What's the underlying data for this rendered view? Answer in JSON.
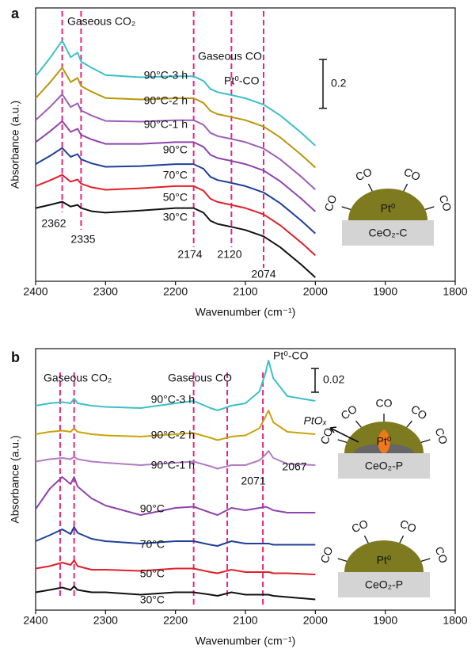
{
  "chart_data": [
    {
      "type": "line",
      "panel_label": "a",
      "xlabel": "Wavenumber (cm⁻¹)",
      "ylabel": "Absorbance (a.u.)",
      "xlim": [
        2400,
        1800
      ],
      "xticks": [
        2400,
        2300,
        2200,
        2100,
        2000,
        1900,
        1800
      ],
      "ylim": [
        0,
        1.12
      ],
      "x": [
        2400,
        2380,
        2362,
        2350,
        2340,
        2335,
        2320,
        2300,
        2250,
        2200,
        2174,
        2160,
        2150,
        2140,
        2120,
        2100,
        2074,
        2050,
        2020,
        2000
      ],
      "series": [
        {
          "name": "30°C",
          "color": "#111111",
          "values": [
            0.3,
            0.313,
            0.326,
            0.306,
            0.313,
            0.3,
            0.287,
            0.281,
            0.29,
            0.3,
            0.3,
            0.281,
            0.248,
            0.235,
            0.223,
            0.21,
            0.184,
            0.139,
            0.068,
            0.016
          ]
        },
        {
          "name": "50°C",
          "color": "#e0202a",
          "values": [
            0.39,
            0.413,
            0.436,
            0.408,
            0.417,
            0.4,
            0.385,
            0.375,
            0.381,
            0.39,
            0.39,
            0.371,
            0.338,
            0.325,
            0.313,
            0.3,
            0.274,
            0.229,
            0.158,
            0.106
          ]
        },
        {
          "name": "70°C",
          "color": "#1f3f99",
          "values": [
            0.48,
            0.513,
            0.546,
            0.51,
            0.521,
            0.5,
            0.483,
            0.469,
            0.472,
            0.48,
            0.48,
            0.461,
            0.428,
            0.415,
            0.403,
            0.39,
            0.364,
            0.319,
            0.248,
            0.196
          ]
        },
        {
          "name": "90°C",
          "color": "#8e44ad",
          "values": [
            0.57,
            0.613,
            0.656,
            0.612,
            0.625,
            0.6,
            0.581,
            0.563,
            0.563,
            0.57,
            0.57,
            0.551,
            0.518,
            0.505,
            0.493,
            0.48,
            0.454,
            0.409,
            0.338,
            0.286
          ]
        },
        {
          "name": "90°C-1 h",
          "color": "#9b5fb8",
          "values": [
            0.66,
            0.713,
            0.766,
            0.714,
            0.729,
            0.7,
            0.679,
            0.657,
            0.654,
            0.66,
            0.66,
            0.641,
            0.608,
            0.595,
            0.583,
            0.57,
            0.544,
            0.499,
            0.428,
            0.376
          ]
        },
        {
          "name": "90°C-2 h",
          "color": "#b8960a",
          "values": [
            0.75,
            0.813,
            0.876,
            0.816,
            0.833,
            0.8,
            0.777,
            0.751,
            0.745,
            0.75,
            0.75,
            0.731,
            0.698,
            0.685,
            0.673,
            0.66,
            0.634,
            0.589,
            0.518,
            0.466
          ]
        },
        {
          "name": "90°C-3 h",
          "color": "#3cc0c8",
          "values": [
            0.84,
            0.913,
            0.986,
            0.918,
            0.937,
            0.9,
            0.875,
            0.845,
            0.836,
            0.84,
            0.84,
            0.821,
            0.788,
            0.775,
            0.763,
            0.75,
            0.724,
            0.679,
            0.608,
            0.556
          ]
        }
      ],
      "marker_lines": [
        2362,
        2335,
        2174,
        2120,
        2074
      ],
      "peak_labels": [
        2362,
        2335,
        2174,
        2120,
        2074
      ],
      "scale_bar": 0.2,
      "annotations": [
        "Gaseous CO₂",
        "Gaseous CO",
        "Pt⁰-CO"
      ],
      "insets": [
        {
          "metal": "Pt⁰",
          "support": "CeO₂-C",
          "ligands": [
            "CO",
            "CO",
            "CO",
            "CO"
          ]
        }
      ]
    },
    {
      "type": "line",
      "panel_label": "b",
      "xlabel": "Wavenumber (cm⁻¹)",
      "ylabel": "Absorbance (a.u.)",
      "xlim": [
        2400,
        1800
      ],
      "xticks": [
        2400,
        2300,
        2200,
        2100,
        2000,
        1900,
        1800
      ],
      "ylim": [
        0,
        0.22
      ],
      "x": [
        2400,
        2380,
        2362,
        2350,
        2345,
        2340,
        2320,
        2300,
        2250,
        2200,
        2174,
        2150,
        2140,
        2120,
        2100,
        2080,
        2071,
        2067,
        2060,
        2040,
        2000
      ],
      "series": [
        {
          "name": "30°C",
          "color": "#111111",
          "values": [
            0.015,
            0.017,
            0.019,
            0.017,
            0.02,
            0.017,
            0.015,
            0.015,
            0.013,
            0.015,
            0.015,
            0.013,
            0.012,
            0.015,
            0.013,
            0.013,
            0.013,
            0.013,
            0.012,
            0.011,
            0.009
          ]
        },
        {
          "name": "50°C",
          "color": "#e0202a",
          "values": [
            0.035,
            0.037,
            0.04,
            0.038,
            0.042,
            0.037,
            0.034,
            0.034,
            0.033,
            0.035,
            0.035,
            0.032,
            0.031,
            0.034,
            0.032,
            0.032,
            0.032,
            0.032,
            0.031,
            0.031,
            0.03
          ]
        },
        {
          "name": "70°C",
          "color": "#1f3f99",
          "values": [
            0.058,
            0.063,
            0.068,
            0.064,
            0.07,
            0.065,
            0.06,
            0.058,
            0.056,
            0.058,
            0.058,
            0.055,
            0.054,
            0.058,
            0.056,
            0.056,
            0.056,
            0.056,
            0.055,
            0.055,
            0.055
          ]
        },
        {
          "name": "90°C",
          "color": "#8e44ad",
          "values": [
            0.085,
            0.102,
            0.112,
            0.106,
            0.112,
            0.104,
            0.094,
            0.088,
            0.08,
            0.086,
            0.087,
            0.082,
            0.08,
            0.086,
            0.084,
            0.086,
            0.087,
            0.086,
            0.084,
            0.082,
            0.082
          ]
        },
        {
          "name": "90°C-1 h",
          "color": "#b07cc6",
          "values": [
            0.125,
            0.127,
            0.128,
            0.127,
            0.129,
            0.127,
            0.125,
            0.124,
            0.122,
            0.124,
            0.125,
            0.121,
            0.119,
            0.122,
            0.122,
            0.126,
            0.131,
            0.134,
            0.128,
            0.123,
            0.122
          ]
        },
        {
          "name": "90°C-2 h",
          "color": "#c9a30c",
          "values": [
            0.148,
            0.15,
            0.151,
            0.15,
            0.153,
            0.15,
            0.148,
            0.147,
            0.146,
            0.148,
            0.149,
            0.145,
            0.143,
            0.146,
            0.147,
            0.153,
            0.163,
            0.168,
            0.158,
            0.15,
            0.148
          ]
        },
        {
          "name": "90°C-3 h",
          "color": "#3cc0c8",
          "values": [
            0.172,
            0.174,
            0.175,
            0.174,
            0.178,
            0.174,
            0.172,
            0.171,
            0.17,
            0.174,
            0.176,
            0.17,
            0.168,
            0.172,
            0.174,
            0.184,
            0.2,
            0.21,
            0.195,
            0.18,
            0.176
          ]
        }
      ],
      "marker_lines": [
        2365,
        2345,
        2174,
        2126,
        2075
      ],
      "peak_labels": [
        2067,
        2071
      ],
      "scale_bar": 0.02,
      "annotations": [
        "Gaseous CO₂",
        "Gaseous CO",
        "Pt⁰-CO"
      ],
      "insets": [
        {
          "metal": "Pt⁰",
          "support": "CeO₂-P",
          "ligands": [
            "CO",
            "CO",
            "CO",
            "CO",
            "CO"
          ],
          "released": "PtOₓ"
        },
        {
          "metal": "Pt⁰",
          "support": "CeO₂-P",
          "ligands": [
            "CO",
            "CO",
            "CO",
            "CO"
          ]
        }
      ]
    }
  ]
}
